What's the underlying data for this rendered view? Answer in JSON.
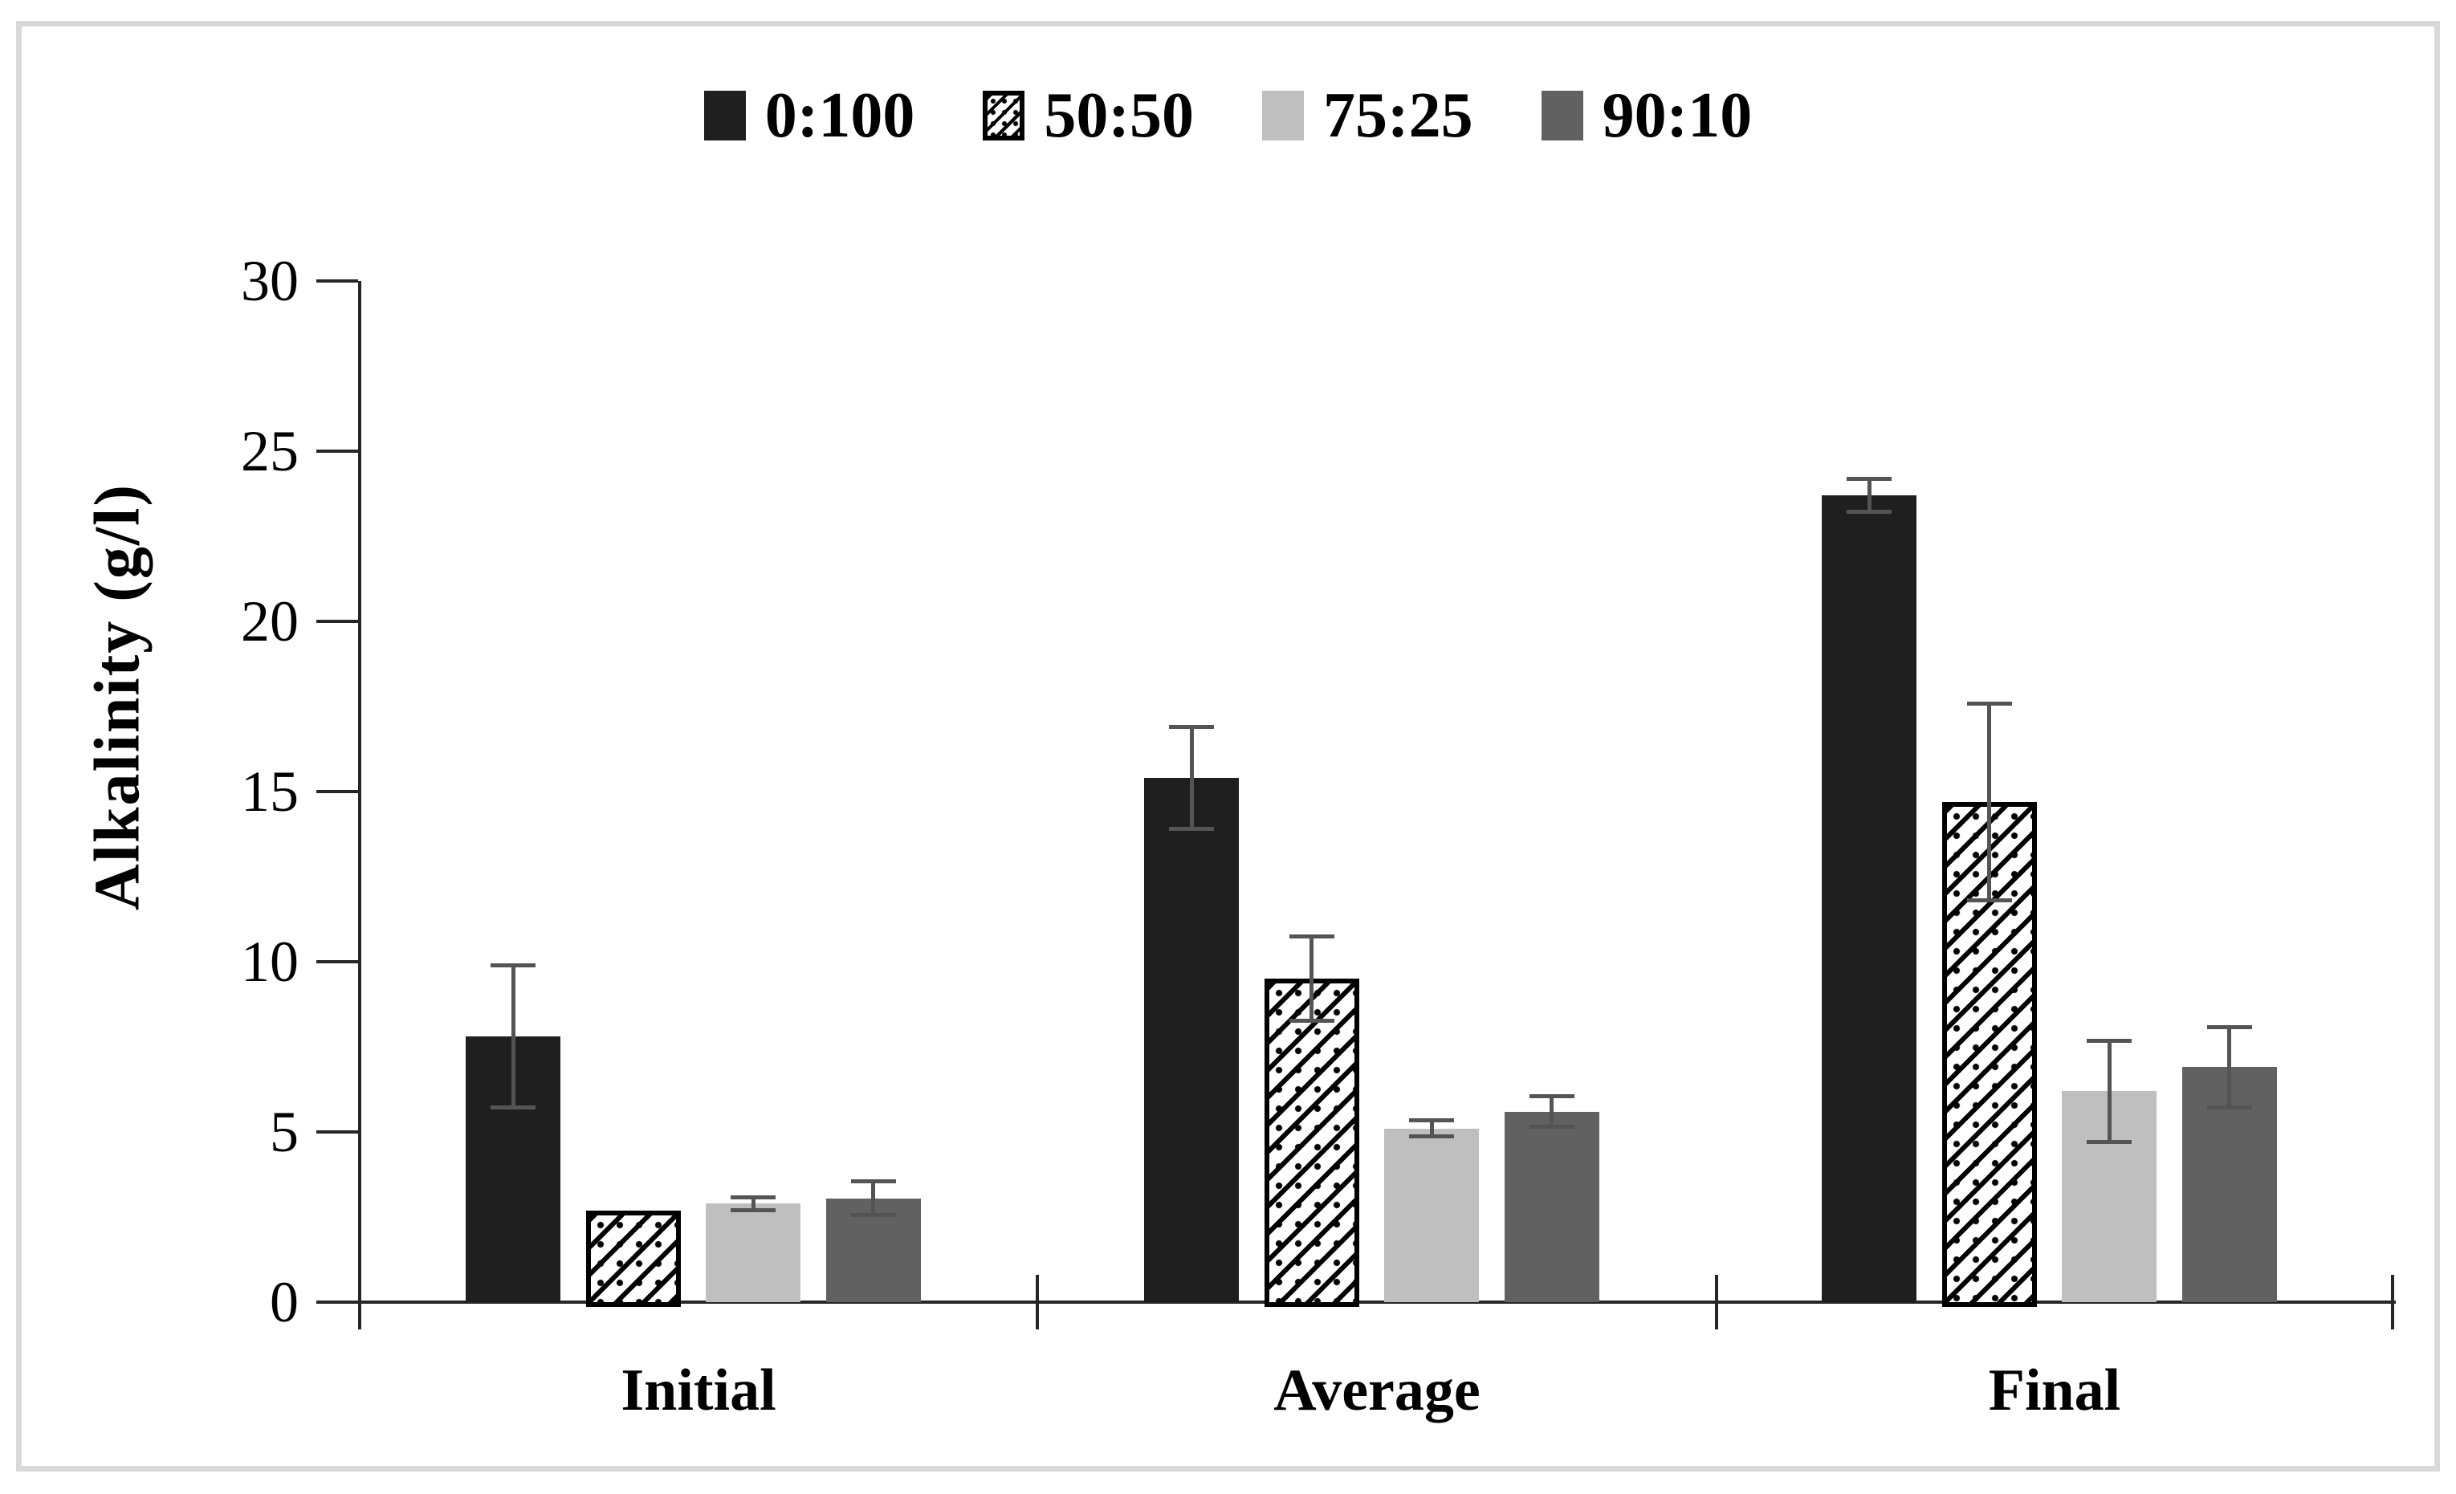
{
  "figure": {
    "y_axis_title": "Alkalinity (g/l)"
  },
  "colors": {
    "axis": "#262626",
    "error_bar": "#545454",
    "frame_border": "#d9d9d9",
    "text": "#000000",
    "background": "#ffffff"
  },
  "chart_data": {
    "type": "bar",
    "title": "",
    "categories": [
      "Initial",
      "Average",
      "Final"
    ],
    "series": [
      {
        "name": "0:100",
        "pattern": "solid",
        "fill": "#1f1f1f",
        "values": [
          7.8,
          15.4,
          23.7
        ],
        "errors": [
          2.1,
          1.5,
          0.5
        ]
      },
      {
        "name": "50:50",
        "pattern": "diagonal-hatch",
        "fill": "#ffffff",
        "hatch_color": "#000000",
        "values": [
          2.7,
          9.5,
          14.7
        ],
        "errors": [
          0,
          1.25,
          2.9
        ]
      },
      {
        "name": "75:25",
        "pattern": "solid",
        "fill": "#bfbfbf",
        "values": [
          2.9,
          5.1,
          6.2
        ],
        "errors": [
          0.2,
          0.25,
          1.5
        ]
      },
      {
        "name": "90:10",
        "pattern": "solid",
        "fill": "#616161",
        "values": [
          3.05,
          5.6,
          6.9
        ],
        "errors": [
          0.5,
          0.45,
          1.2
        ]
      }
    ],
    "ylabel": "Alkalinity (g/l)",
    "xlabel": "",
    "ylim": [
      0,
      30
    ],
    "yticks": [
      0,
      5,
      10,
      15,
      20,
      25,
      30
    ],
    "grid": false,
    "legend_position": "top",
    "error_bars": true
  }
}
